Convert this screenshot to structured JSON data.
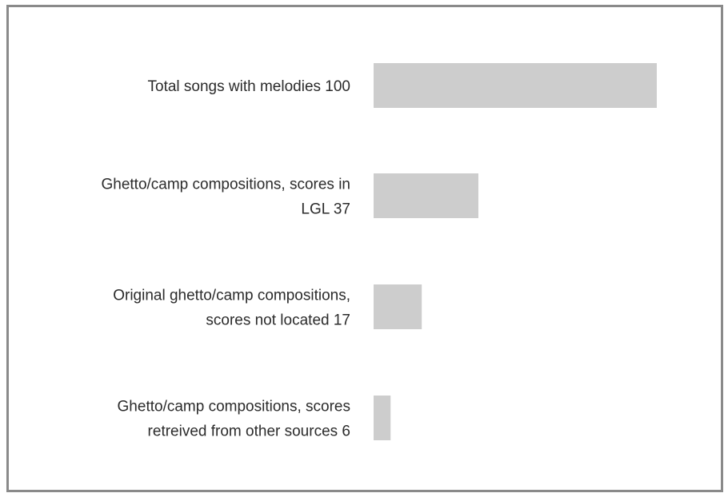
{
  "chart_data": {
    "type": "bar",
    "orientation": "horizontal",
    "title": "",
    "xlabel": "",
    "ylabel": "",
    "categories": [
      "Total songs with melodies   100",
      "Ghetto/camp compositions, scores in LGL   37",
      "Original ghetto/camp compositions, scores not located   17",
      "Ghetto/camp compositions, scores retreived from other sources   6"
    ],
    "label_lines": [
      [
        "Total songs with melodies   100"
      ],
      [
        "Ghetto/camp compositions, scores in",
        "LGL   37"
      ],
      [
        "Original ghetto/camp compositions,",
        "scores not located   17"
      ],
      [
        "Ghetto/camp compositions, scores",
        "retreived from other sources   6"
      ]
    ],
    "values": [
      100,
      37,
      17,
      6
    ],
    "xlim": [
      0,
      100
    ],
    "grid": false,
    "legend": "none",
    "bar_color": "#cdcdcd"
  }
}
